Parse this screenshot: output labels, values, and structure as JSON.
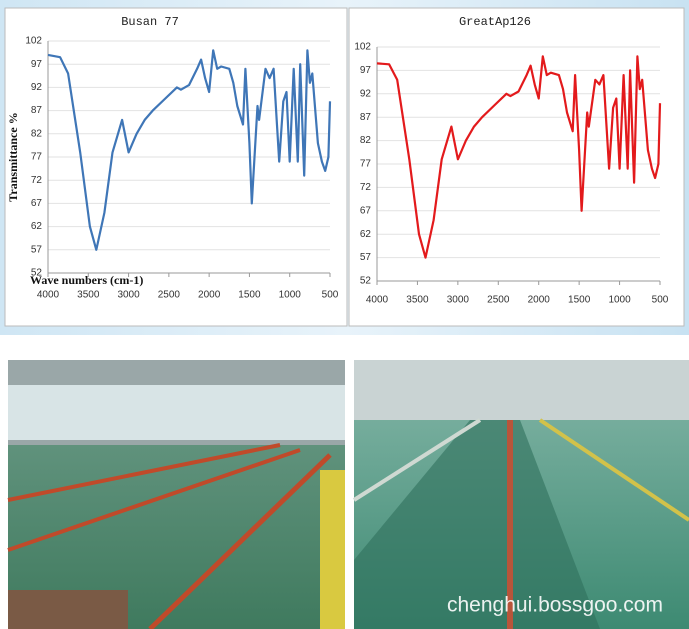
{
  "chart_data": [
    {
      "type": "line",
      "title": "Busan 77",
      "ylabel": "Transmittance %",
      "xlabel": "Wave numbers (cm-1)",
      "xlim": [
        4000,
        500
      ],
      "ylim": [
        52,
        102
      ],
      "xticks": [
        4000,
        3500,
        3000,
        2500,
        2000,
        1500,
        1000,
        500
      ],
      "yticks": [
        52,
        57,
        62,
        67,
        72,
        77,
        82,
        87,
        92,
        97,
        102
      ],
      "grid": true,
      "x": [
        4000,
        3850,
        3750,
        3600,
        3480,
        3400,
        3300,
        3200,
        3080,
        3000,
        2950,
        2900,
        2800,
        2700,
        2550,
        2400,
        2350,
        2250,
        2150,
        2100,
        2050,
        2000,
        1950,
        1900,
        1850,
        1750,
        1700,
        1650,
        1580,
        1550,
        1500,
        1470,
        1400,
        1380,
        1300,
        1250,
        1200,
        1130,
        1080,
        1040,
        1000,
        950,
        900,
        870,
        820,
        780,
        750,
        720,
        650,
        600,
        560,
        520,
        500
      ],
      "series": [
        {
          "name": "Busan 77",
          "color": "#3f76b7",
          "values": [
            99,
            98.5,
            95,
            78,
            62,
            57,
            65,
            78,
            85,
            78,
            80,
            82,
            85,
            87,
            89.5,
            92,
            91.5,
            92.5,
            96,
            98,
            94,
            91,
            100,
            96,
            96.5,
            96,
            93,
            88,
            84,
            96,
            80,
            67,
            88,
            85,
            96,
            94,
            96,
            76,
            89,
            91,
            76,
            96,
            76,
            97,
            73,
            100,
            93,
            95,
            80,
            76,
            74,
            77,
            89
          ]
        }
      ]
    },
    {
      "type": "line",
      "title": "GreatAp126",
      "xlim": [
        4000,
        500
      ],
      "ylim": [
        52,
        102
      ],
      "xticks": [
        4000,
        3500,
        3000,
        2500,
        2000,
        1500,
        1000,
        500
      ],
      "yticks": [
        52,
        57,
        62,
        67,
        72,
        77,
        82,
        87,
        92,
        97,
        102
      ],
      "grid": true,
      "x": [
        4000,
        3850,
        3750,
        3600,
        3480,
        3400,
        3300,
        3200,
        3080,
        3000,
        2950,
        2900,
        2800,
        2700,
        2550,
        2400,
        2350,
        2250,
        2150,
        2100,
        2050,
        2000,
        1950,
        1900,
        1850,
        1750,
        1700,
        1650,
        1580,
        1550,
        1500,
        1470,
        1400,
        1380,
        1300,
        1250,
        1200,
        1130,
        1080,
        1040,
        1000,
        950,
        900,
        870,
        820,
        780,
        750,
        720,
        650,
        600,
        560,
        520,
        500
      ],
      "series": [
        {
          "name": "GreatAp126",
          "color": "#e31a1c",
          "values": [
            98.5,
            98.3,
            95,
            78,
            62,
            57,
            65,
            78,
            85,
            78,
            80,
            82,
            85,
            87,
            89.5,
            92,
            91.5,
            92.5,
            96,
            98,
            94,
            91,
            100,
            96,
            96.5,
            96,
            93,
            88,
            84,
            96,
            80,
            67,
            88,
            85,
            95,
            94,
            96,
            76,
            89,
            91,
            76,
            96,
            76,
            97,
            73,
            100,
            93,
            95,
            80,
            76,
            74,
            77,
            90
          ]
        }
      ]
    }
  ],
  "watermark": "chenghui.bossgoo.com"
}
